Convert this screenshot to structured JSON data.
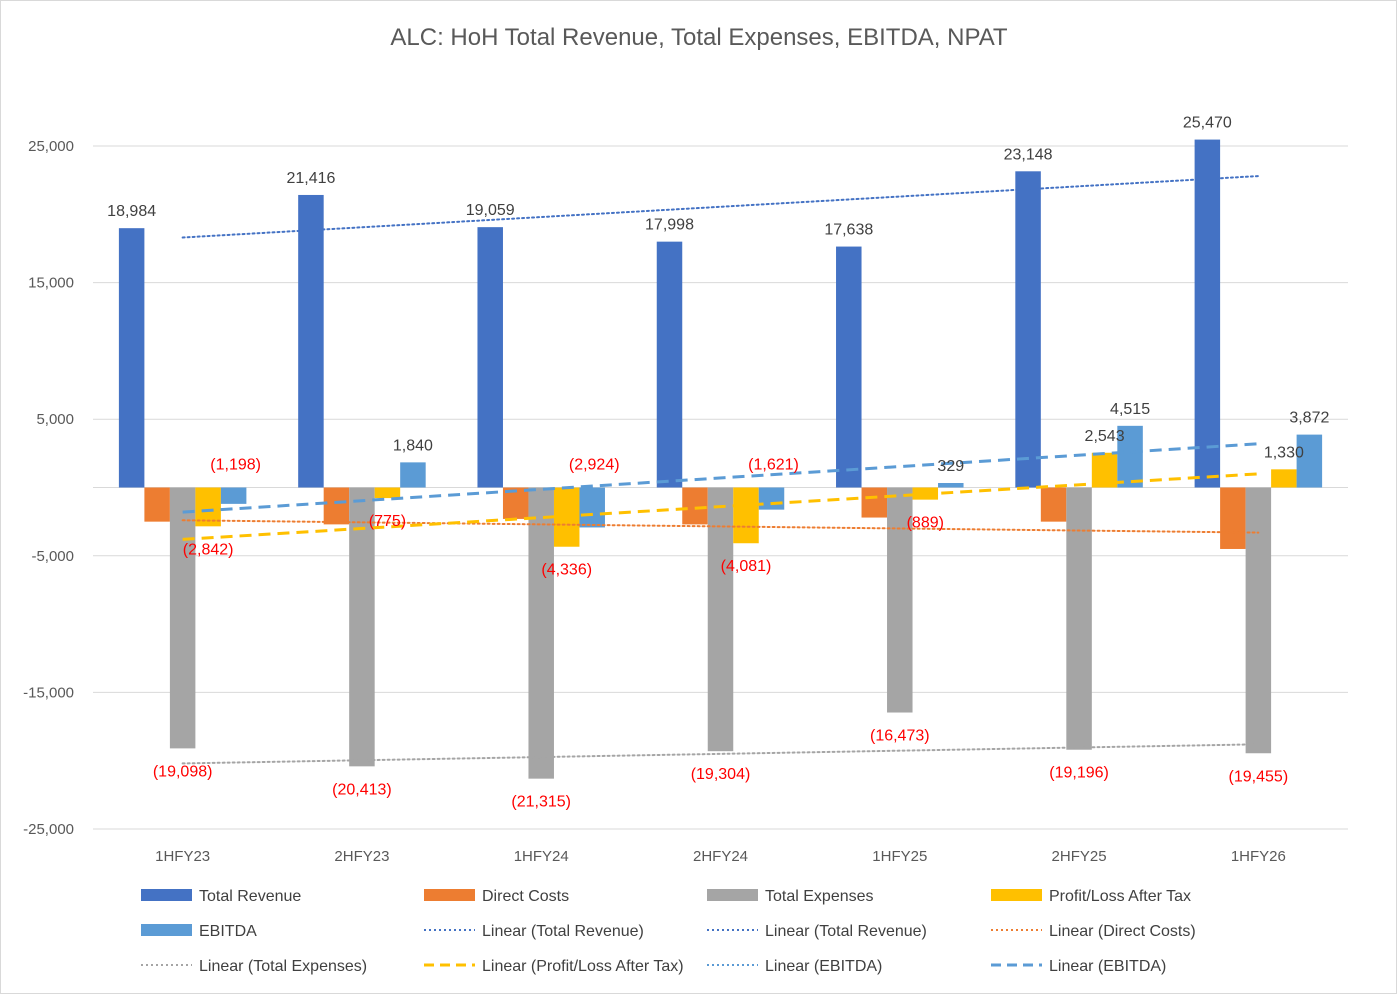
{
  "chart_data": {
    "type": "bar",
    "title": "ALC: HoH Total Revenue, Total Expenses, EBITDA, NPAT",
    "categories": [
      "1HFY23",
      "2HFY23",
      "1HFY24",
      "2HFY24",
      "1HFY25",
      "2HFY25",
      "1HFY26"
    ],
    "ylim": [
      -25000,
      25000
    ],
    "yticks": [
      25000,
      15000,
      5000,
      -5000,
      -15000,
      -25000
    ],
    "ytick_labels": [
      "25,000",
      "15,000",
      "5,000",
      "-5,000",
      "-15,000",
      "-25,000"
    ],
    "grid": true,
    "legend_position": "bottom",
    "series": [
      {
        "name": "Total Revenue",
        "color": "#4472C4",
        "values": [
          18984,
          21416,
          19059,
          17998,
          17638,
          23148,
          25470
        ],
        "labels": [
          "18,984",
          "21,416",
          "19,059",
          "17,998",
          "17,638",
          "23,148",
          "25,470"
        ]
      },
      {
        "name": "Direct Costs",
        "color": "#ED7D31",
        "values": [
          -2500,
          -2700,
          -2300,
          -2700,
          -2200,
          -2500,
          -4500
        ],
        "labels": []
      },
      {
        "name": "Total Expenses",
        "color": "#A5A5A5",
        "values": [
          -19098,
          -20413,
          -21315,
          -19304,
          -16473,
          -19196,
          -19455
        ],
        "labels": [
          "(19,098)",
          "(20,413)",
          "(21,315)",
          "(19,304)",
          "(16,473)",
          "(19,196)",
          "(19,455)"
        ]
      },
      {
        "name": "Profit/Loss After Tax",
        "color": "#FFC000",
        "values": [
          -2842,
          -775,
          -4336,
          -4081,
          -889,
          2543,
          1330
        ],
        "labels": [
          "(2,842)",
          "(775)",
          "(4,336)",
          "(4,081)",
          "(889)",
          "2,543",
          "1,330"
        ]
      },
      {
        "name": "EBITDA",
        "color": "#5B9BD5",
        "values": [
          -1198,
          1840,
          -2924,
          -1621,
          329,
          4515,
          3872
        ],
        "labels": [
          "(1,198)",
          "1,840",
          "(2,924)",
          "(1,621)",
          "329",
          "4,515",
          "3,872"
        ]
      }
    ],
    "trendlines": [
      {
        "name": "Linear (Total Revenue)",
        "series": "Total Revenue",
        "color": "#4472C4",
        "style": "dotted",
        "start": 18300,
        "end": 22800
      },
      {
        "name": "Linear (Direct Costs)",
        "series": "Direct Costs",
        "color": "#ED7D31",
        "style": "dotted",
        "start": -2400,
        "end": -3300
      },
      {
        "name": "Linear (Total Expenses)",
        "series": "Total Expenses",
        "color": "#A5A5A5",
        "style": "dotted",
        "start": -20200,
        "end": -18800
      },
      {
        "name": "Linear (Profit/Loss After Tax)",
        "series": "Profit/Loss After Tax",
        "color": "#FFC000",
        "style": "dashed",
        "start": -3800,
        "end": 1000
      },
      {
        "name": "Linear (EBITDA)",
        "series": "EBITDA",
        "color": "#5B9BD5",
        "style": "dashed",
        "start": -1800,
        "end": 3200
      }
    ],
    "legend": [
      {
        "label": "Total Revenue",
        "kind": "box",
        "color": "#4472C4"
      },
      {
        "label": "Direct Costs",
        "kind": "box",
        "color": "#ED7D31"
      },
      {
        "label": "Total Expenses",
        "kind": "box",
        "color": "#A5A5A5"
      },
      {
        "label": "Profit/Loss After Tax",
        "kind": "box",
        "color": "#FFC000"
      },
      {
        "label": "EBITDA",
        "kind": "box",
        "color": "#5B9BD5"
      },
      {
        "label": "Linear (Total Revenue)",
        "kind": "dotted",
        "color": "#4472C4"
      },
      {
        "label": "Linear (Total Revenue)",
        "kind": "dotted",
        "color": "#4472C4"
      },
      {
        "label": "Linear (Direct Costs)",
        "kind": "dotted",
        "color": "#ED7D31"
      },
      {
        "label": "Linear (Total Expenses)",
        "kind": "dotted",
        "color": "#A5A5A5"
      },
      {
        "label": "Linear (Profit/Loss After Tax)",
        "kind": "dashed",
        "color": "#FFC000"
      },
      {
        "label": "Linear (EBITDA)",
        "kind": "dotted",
        "color": "#5B9BD5"
      },
      {
        "label": "Linear (EBITDA)",
        "kind": "dashed",
        "color": "#5B9BD5"
      }
    ],
    "colors": {
      "positive_label": "#404040",
      "negative_label": "#FF0000",
      "grid": "#D9D9D9",
      "tick": "#595959"
    }
  }
}
